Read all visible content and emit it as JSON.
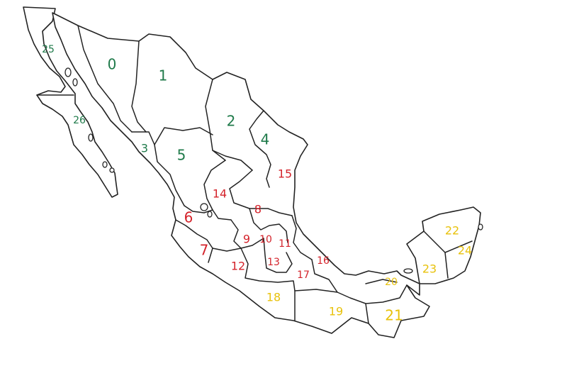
{
  "colors": {
    "north": "#1f7a4a",
    "center": "#d4232b",
    "south": "#e8c20c",
    "outline": "#222222",
    "background": "#ffffff"
  },
  "regions": [
    {
      "id": "r25",
      "label": "25",
      "group": "north"
    },
    {
      "id": "r0",
      "label": "0",
      "group": "north"
    },
    {
      "id": "r1",
      "label": "1",
      "group": "north"
    },
    {
      "id": "r26",
      "label": "26",
      "group": "north"
    },
    {
      "id": "r2",
      "label": "2",
      "group": "north"
    },
    {
      "id": "r3",
      "label": "3",
      "group": "north"
    },
    {
      "id": "r4",
      "label": "4",
      "group": "north"
    },
    {
      "id": "r5",
      "label": "5",
      "group": "north"
    },
    {
      "id": "r15",
      "label": "15",
      "group": "center"
    },
    {
      "id": "r14",
      "label": "14",
      "group": "center"
    },
    {
      "id": "r8",
      "label": "8",
      "group": "center"
    },
    {
      "id": "r6",
      "label": "6",
      "group": "center"
    },
    {
      "id": "r9",
      "label": "9",
      "group": "center"
    },
    {
      "id": "r10",
      "label": "10",
      "group": "center"
    },
    {
      "id": "r11",
      "label": "11",
      "group": "center"
    },
    {
      "id": "r7",
      "label": "7",
      "group": "center"
    },
    {
      "id": "r12",
      "label": "12",
      "group": "center"
    },
    {
      "id": "r13",
      "label": "13",
      "group": "center"
    },
    {
      "id": "r16",
      "label": "16",
      "group": "center"
    },
    {
      "id": "r17",
      "label": "17",
      "group": "center"
    },
    {
      "id": "r18",
      "label": "18",
      "group": "south"
    },
    {
      "id": "r19",
      "label": "19",
      "group": "south"
    },
    {
      "id": "r20",
      "label": "20",
      "group": "south"
    },
    {
      "id": "r21",
      "label": "21",
      "group": "south"
    },
    {
      "id": "r22",
      "label": "22",
      "group": "south"
    },
    {
      "id": "r23",
      "label": "23",
      "group": "south"
    },
    {
      "id": "r24",
      "label": "24",
      "group": "south"
    }
  ]
}
